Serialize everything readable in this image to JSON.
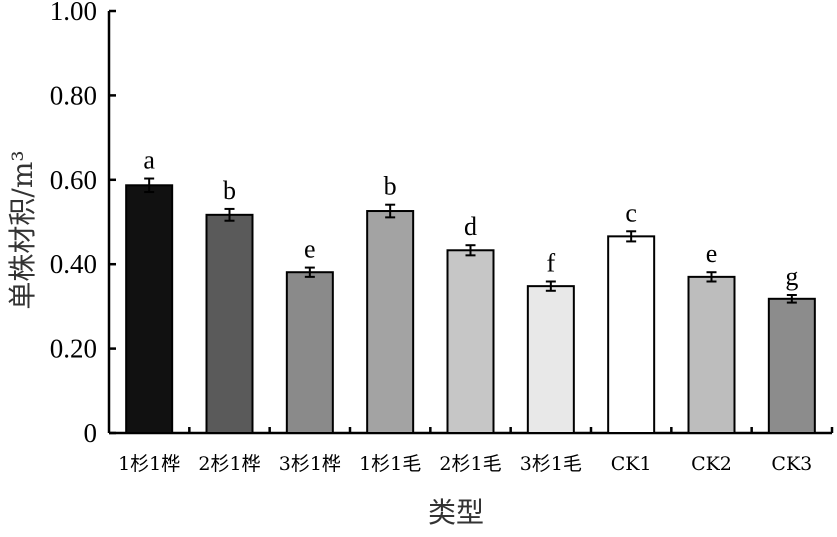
{
  "chart_data": {
    "type": "bar",
    "title": "",
    "xlabel": "类型",
    "ylabel": "单株材积/m³",
    "ylim": [
      0,
      1.0
    ],
    "yticks": [
      "0",
      "0.20",
      "0.40",
      "0.60",
      "0.80",
      "1.00"
    ],
    "categories": [
      "1杉1桦",
      "2杉1桦",
      "3杉1桦",
      "1杉1毛",
      "2杉1毛",
      "3杉1毛",
      "CK1",
      "CK2",
      "CK3"
    ],
    "values": [
      0.587,
      0.517,
      0.381,
      0.526,
      0.433,
      0.348,
      0.466,
      0.37,
      0.318
    ],
    "errors": [
      0.016,
      0.014,
      0.011,
      0.015,
      0.012,
      0.011,
      0.012,
      0.011,
      0.009
    ],
    "significance": [
      "a",
      "b",
      "e",
      "b",
      "d",
      "f",
      "c",
      "e",
      "g"
    ],
    "bar_colors": [
      "#111111",
      "#5a5a5a",
      "#8a8a8a",
      "#a3a3a3",
      "#c6c6c6",
      "#e8e8e8",
      "#ffffff",
      "#bdbdbd",
      "#8c8c8c"
    ],
    "grid": false,
    "legend": "none"
  }
}
